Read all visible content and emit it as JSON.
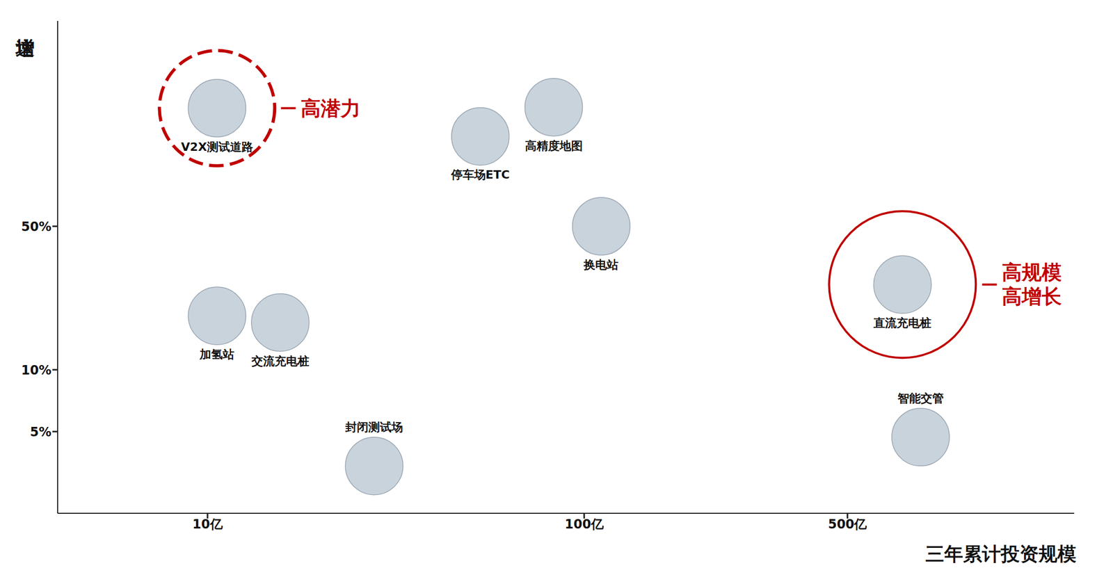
{
  "chart_data": {
    "type": "scatter",
    "xlabel": "三年累计投资规模",
    "ylabel": "增速",
    "log": true,
    "grid": false,
    "color": "#c9d3dc",
    "xlim": [
      4,
      2000
    ],
    "ylim": [
      2,
      500
    ],
    "xticks": [
      {
        "value": 10,
        "label": "10亿"
      },
      {
        "value": 100,
        "label": "100亿"
      },
      {
        "value": 500,
        "label": "500亿"
      }
    ],
    "yticks": [
      {
        "value": 5,
        "label": "5%"
      },
      {
        "value": 10,
        "label": "10%"
      },
      {
        "value": 50,
        "label": "50%"
      }
    ],
    "points": [
      {
        "name": "V2X测试道路",
        "x": 10.6,
        "y": 188
      },
      {
        "name": "停车场ETC",
        "x": 53,
        "y": 137
      },
      {
        "name": "高精度地图",
        "x": 83,
        "y": 190
      },
      {
        "name": "换电站",
        "x": 111,
        "y": 50
      },
      {
        "name": "直流充电桩",
        "x": 700,
        "y": 26
      },
      {
        "name": "加氢站",
        "x": 10.6,
        "y": 18.3
      },
      {
        "name": "交流充电桩",
        "x": 15.6,
        "y": 17
      },
      {
        "name": "封闭测试场",
        "x": 27.7,
        "y": 3.4
      },
      {
        "name": "智能交管",
        "x": 782,
        "y": 4.7
      }
    ],
    "highlights": [
      {
        "point": "V2X测试道路",
        "label": "高潜力",
        "line_style": "dashed",
        "color": "#c00000"
      },
      {
        "point": "直流充电桩",
        "label": [
          "高规模",
          "高增长"
        ],
        "line_style": "solid",
        "color": "#c00000"
      }
    ]
  }
}
